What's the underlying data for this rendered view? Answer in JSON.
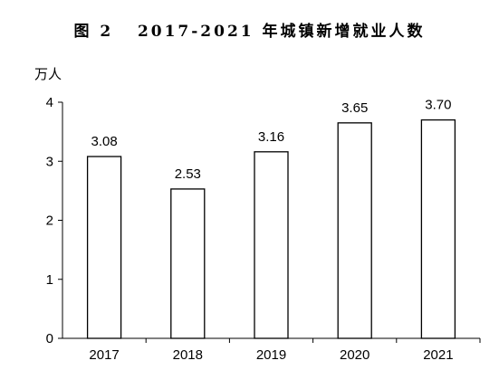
{
  "chart_data": {
    "type": "bar",
    "title": "图 2   2017-2021 年城镇新增就业人数",
    "ylabel": "万人",
    "xlabel": "",
    "categories": [
      "2017",
      "2018",
      "2019",
      "2020",
      "2021"
    ],
    "values": [
      3.08,
      2.53,
      3.16,
      3.65,
      3.7
    ],
    "value_labels": [
      "3.08",
      "2.53",
      "3.16",
      "3.65",
      "3.70"
    ],
    "ylim": [
      0,
      4
    ],
    "yticks": [
      "0",
      "1",
      "2",
      "3",
      "4"
    ],
    "grid": false,
    "legend": "none",
    "bar_fill": "#ffffff",
    "bar_stroke": "#000000"
  }
}
